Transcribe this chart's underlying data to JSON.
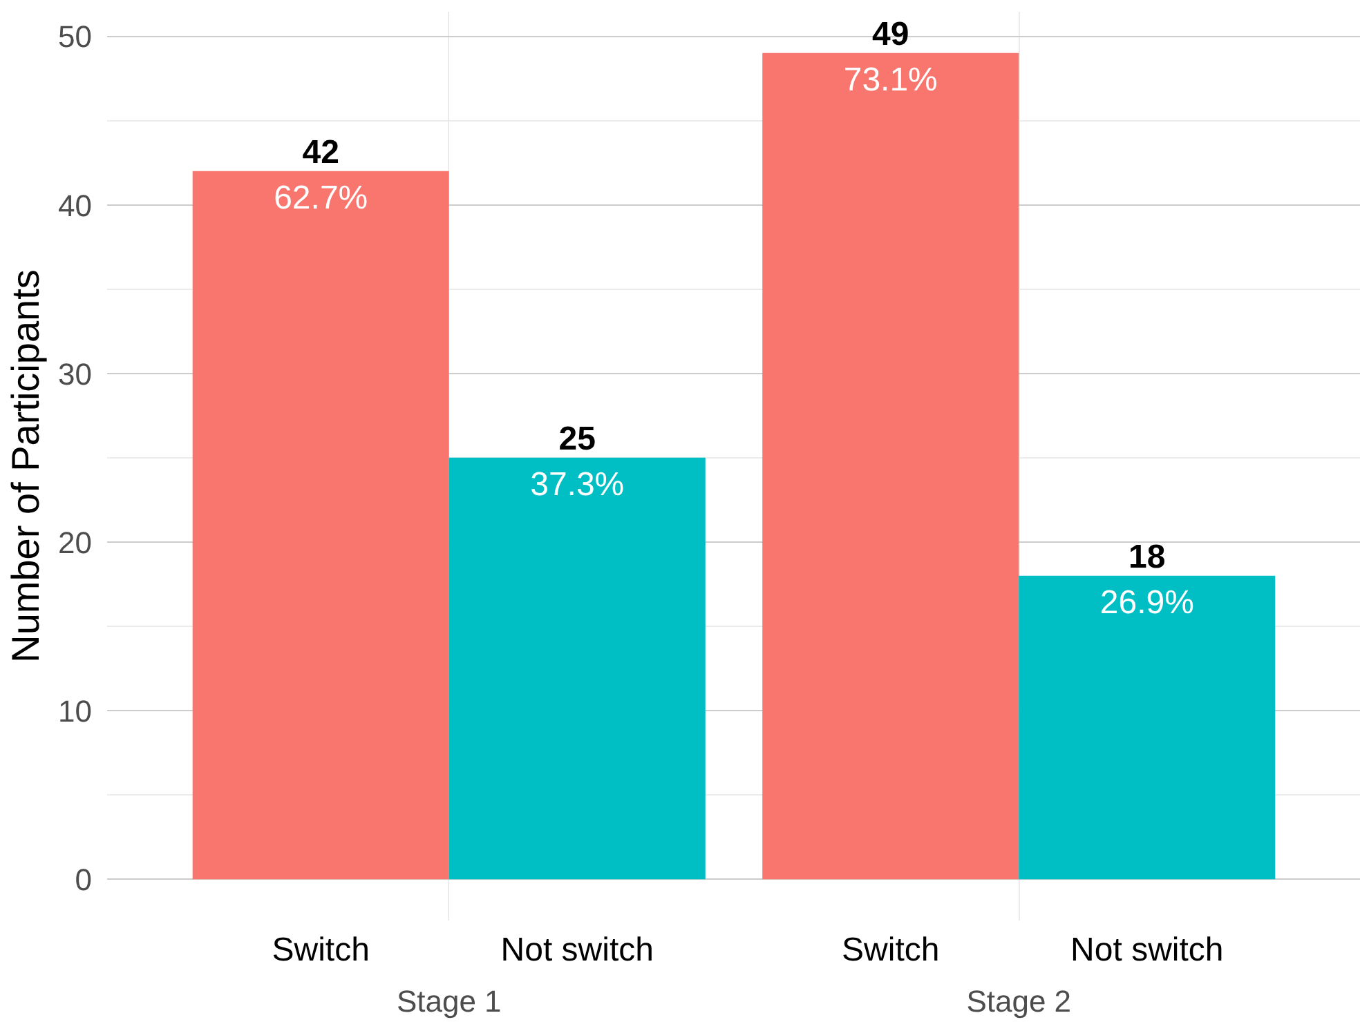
{
  "chart_data": {
    "type": "bar",
    "ylabel": "Number of Participants",
    "categories": [
      "Stage 1",
      "Stage 2"
    ],
    "series": [
      {
        "name": "Switch",
        "color": "#f8766d",
        "values": [
          42,
          49
        ],
        "value_labels": [
          "42",
          "49"
        ]
      },
      {
        "name": "Not switch",
        "color": "#00bfc4",
        "values": [
          25,
          18
        ],
        "value_labels": [
          "25",
          "18"
        ]
      }
    ],
    "annotations": [
      "62.7%",
      "73.1%",
      "37.3%",
      "26.9%"
    ],
    "ylim": [
      -2.45,
      51.45
    ],
    "yticks": [
      0,
      10,
      20,
      30,
      40,
      50
    ],
    "grid": true
  }
}
